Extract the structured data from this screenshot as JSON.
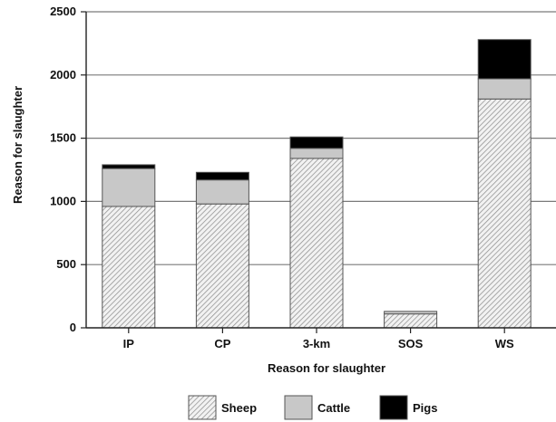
{
  "chart_data": {
    "type": "bar",
    "stacked": true,
    "title": "",
    "xlabel": "Reason for slaughter",
    "ylabel": "Reason for slaughter",
    "ylim": [
      0,
      2500
    ],
    "yticks": [
      0,
      500,
      1000,
      1500,
      2000,
      2500
    ],
    "grid": true,
    "legend_position": "bottom",
    "categories": [
      "IP",
      "CP",
      "3-km",
      "SOS",
      "WS"
    ],
    "series": [
      {
        "name": "Sheep",
        "values": [
          960,
          980,
          1340,
          110,
          1810
        ],
        "pattern": "hatch",
        "color": "#d9d9d9"
      },
      {
        "name": "Cattle",
        "values": [
          300,
          190,
          80,
          20,
          160
        ],
        "pattern": "solid",
        "color": "#c8c8c8"
      },
      {
        "name": "Pigs",
        "values": [
          30,
          60,
          90,
          0,
          310
        ],
        "pattern": "solid",
        "color": "#000000"
      }
    ]
  }
}
